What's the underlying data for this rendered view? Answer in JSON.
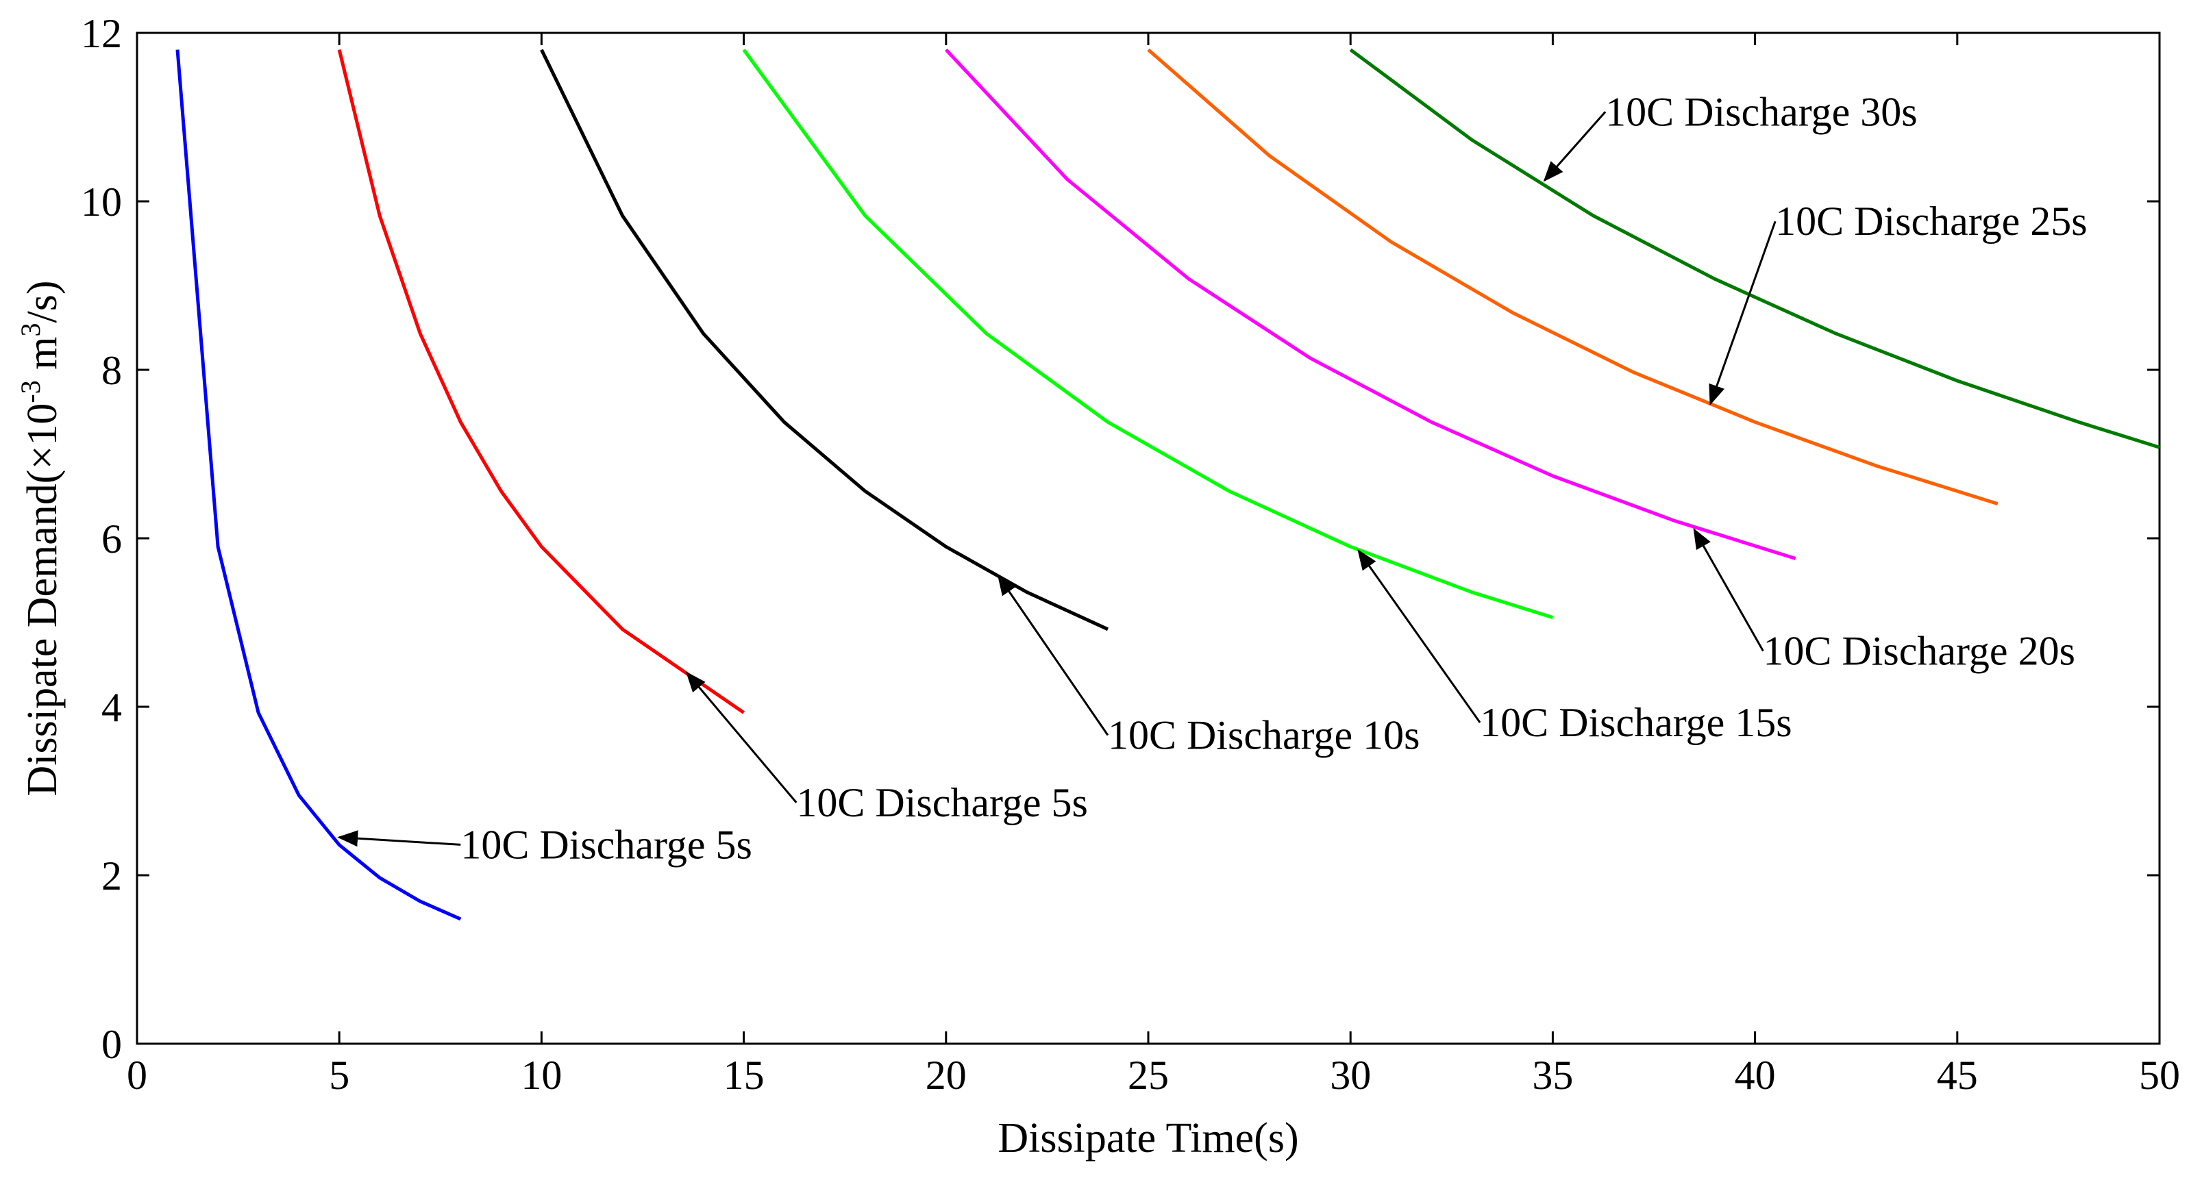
{
  "chart_data": {
    "type": "line",
    "title": "",
    "xlabel": "Dissipate Time(s)",
    "ylabel": {
      "prefix": "Dissipate Demand(×10",
      "exp1": "-3",
      "mid": " m",
      "exp2": "3",
      "suffix": "/s)"
    },
    "xlim": [
      0,
      50
    ],
    "ylim": [
      0,
      12
    ],
    "xticks": [
      0,
      5,
      10,
      15,
      20,
      25,
      30,
      35,
      40,
      45,
      50
    ],
    "yticks": [
      0,
      2,
      4,
      6,
      8,
      10,
      12
    ],
    "grid": false,
    "series": [
      {
        "name": "10C Discharge 5s",
        "color": "#0000ff",
        "x": [
          1,
          2,
          3,
          4,
          5,
          6,
          7,
          8
        ],
        "y": [
          11.8,
          5.9,
          3.93,
          2.95,
          2.36,
          1.97,
          1.69,
          1.48
        ]
      },
      {
        "name": "10C Discharge 5s",
        "color": "#ff0000",
        "x": [
          5,
          6,
          7,
          8,
          9,
          10,
          12,
          15
        ],
        "y": [
          11.8,
          9.83,
          8.43,
          7.38,
          6.56,
          5.9,
          4.92,
          3.93
        ]
      },
      {
        "name": "10C Discharge 10s",
        "color": "#000000",
        "x": [
          10,
          12,
          14,
          16,
          18,
          20,
          22,
          24
        ],
        "y": [
          11.8,
          9.83,
          8.43,
          7.38,
          6.56,
          5.9,
          5.36,
          4.92
        ]
      },
      {
        "name": "10C Discharge 15s",
        "color": "#00ff00",
        "x": [
          15,
          18,
          21,
          24,
          27,
          30,
          33,
          35
        ],
        "y": [
          11.8,
          9.83,
          8.43,
          7.38,
          6.56,
          5.9,
          5.36,
          5.06
        ]
      },
      {
        "name": "10C Discharge 20s",
        "color": "#ff00ff",
        "x": [
          20,
          23,
          26,
          29,
          32,
          35,
          38,
          41
        ],
        "y": [
          11.8,
          10.26,
          9.08,
          8.14,
          7.38,
          6.74,
          6.21,
          5.76
        ]
      },
      {
        "name": "10C Discharge 25s",
        "color": "#ff6000",
        "x": [
          25,
          28,
          31,
          34,
          37,
          40,
          43,
          46
        ],
        "y": [
          11.8,
          10.54,
          9.52,
          8.68,
          7.97,
          7.38,
          6.86,
          6.41
        ]
      },
      {
        "name": "10C Discharge 30s",
        "color": "#007a00",
        "x": [
          30,
          33,
          36,
          39,
          42,
          45,
          48,
          50
        ],
        "y": [
          11.8,
          10.73,
          9.83,
          9.08,
          8.43,
          7.87,
          7.38,
          7.08
        ]
      }
    ],
    "annotations": [
      {
        "text": "10C Discharge 5s",
        "text_at": [
          8.0,
          2.2
        ],
        "arrow_to": [
          5.0,
          2.45
        ]
      },
      {
        "text": "10C Discharge 5s",
        "text_at": [
          16.3,
          2.7
        ],
        "arrow_to": [
          13.6,
          4.4
        ]
      },
      {
        "text": "10C Discharge 10s",
        "text_at": [
          24.0,
          3.5
        ],
        "arrow_to": [
          21.3,
          5.55
        ]
      },
      {
        "text": "10C Discharge 15s",
        "text_at": [
          33.2,
          3.65
        ],
        "arrow_to": [
          30.2,
          5.85
        ]
      },
      {
        "text": "10C Discharge 20s",
        "text_at": [
          40.2,
          4.5
        ],
        "arrow_to": [
          38.5,
          6.1
        ]
      },
      {
        "text": "10C Discharge 25s",
        "text_at": [
          40.5,
          9.6
        ],
        "arrow_to": [
          38.9,
          7.6
        ]
      },
      {
        "text": "10C Discharge 30s",
        "text_at": [
          36.3,
          10.9
        ],
        "arrow_to": [
          34.8,
          10.25
        ]
      }
    ]
  }
}
